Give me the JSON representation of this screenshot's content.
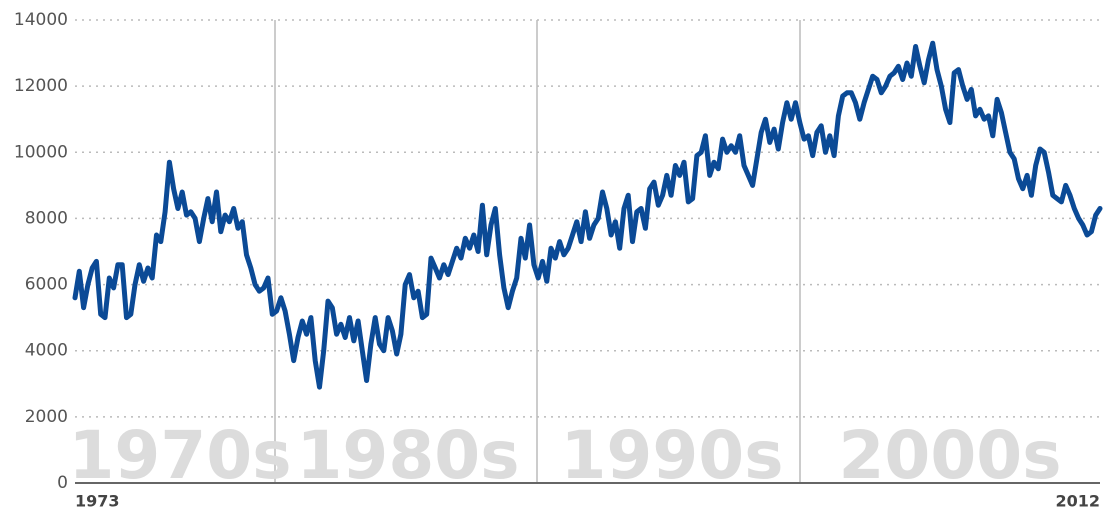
{
  "chart_data": {
    "type": "line",
    "annotations": [
      "1970s",
      "1980s",
      "1990s",
      "2000s"
    ],
    "categories": [
      "1973",
      null,
      null,
      null,
      null,
      null,
      null,
      null,
      null,
      null,
      null,
      null,
      null,
      null,
      null,
      null,
      null,
      null,
      null,
      null,
      null,
      null,
      null,
      null,
      null,
      null,
      null,
      null,
      null,
      null,
      null,
      null,
      null,
      null,
      null,
      null,
      null,
      null,
      null,
      null,
      null,
      null,
      null,
      null,
      null,
      null,
      null,
      null,
      null,
      null,
      null,
      null,
      null,
      null,
      null,
      null,
      null,
      null,
      null,
      null,
      null,
      null,
      null,
      null,
      null,
      null,
      null,
      null,
      null,
      null,
      null,
      null,
      null,
      null,
      null,
      null,
      null,
      null,
      null,
      null,
      null,
      null,
      null,
      null,
      null,
      null,
      null,
      null,
      null,
      null,
      null,
      null,
      null,
      null,
      null,
      null,
      null,
      null,
      null,
      null,
      null,
      null,
      null,
      null,
      null,
      null,
      null,
      null,
      null,
      null,
      null,
      null,
      null,
      null,
      null,
      null,
      null,
      null,
      null,
      null,
      null,
      null,
      null,
      null,
      null,
      null,
      null,
      null,
      null,
      null,
      null,
      null,
      null,
      null,
      null,
      null,
      null,
      null,
      null,
      null,
      null,
      null,
      null,
      null,
      null,
      null,
      null,
      null,
      null,
      null,
      null,
      null,
      null,
      null,
      null,
      null,
      null,
      null,
      null,
      null,
      null,
      null,
      null,
      null,
      null,
      null,
      null,
      null,
      null,
      null,
      null,
      null,
      null,
      null,
      null,
      null,
      null,
      null,
      null,
      null,
      null,
      null,
      null,
      null,
      null,
      null,
      null,
      null,
      null,
      null,
      null,
      null,
      null,
      null,
      null,
      null,
      null,
      null,
      null,
      null,
      null,
      null,
      null,
      null,
      null,
      null,
      null,
      null,
      null,
      null,
      null,
      null,
      null,
      null,
      null,
      null,
      null,
      null,
      null,
      null,
      null,
      null,
      null,
      null,
      null,
      null,
      null,
      null,
      null,
      null,
      null,
      null,
      null,
      null,
      null,
      null,
      null,
      null,
      null,
      "2012"
    ],
    "series": [
      {
        "color": "#0b4a96",
        "values": [
          5600,
          6400,
          5300,
          6000,
          6500,
          6700,
          5100,
          5000,
          6200,
          5900,
          6600,
          6600,
          5000,
          5100,
          6000,
          6600,
          6100,
          6500,
          6200,
          7500,
          7300,
          8200,
          9700,
          8900,
          8300,
          8800,
          8100,
          8200,
          8000,
          7300,
          8000,
          8600,
          7900,
          8800,
          7600,
          8100,
          7900,
          8300,
          7700,
          7900,
          6900,
          6500,
          6000,
          5800,
          5900,
          6200,
          5100,
          5200,
          5600,
          5200,
          4500,
          3700,
          4400,
          4900,
          4500,
          5000,
          3700,
          2900,
          4000,
          5500,
          5300,
          4500,
          4800,
          4400,
          5000,
          4300,
          4900,
          4000,
          3100,
          4200,
          5000,
          4200,
          4000,
          5000,
          4600,
          3900,
          4500,
          6000,
          6300,
          5600,
          5800,
          5000,
          5100,
          6800,
          6500,
          6200,
          6600,
          6300,
          6700,
          7100,
          6800,
          7400,
          7100,
          7500,
          7000,
          8400,
          6900,
          7800,
          8300,
          6900,
          5900,
          5300,
          5800,
          6200,
          7400,
          6800,
          7800,
          6600,
          6200,
          6700,
          6100,
          7100,
          6800,
          7300,
          6900,
          7100,
          7500,
          7900,
          7300,
          8200,
          7400,
          7800,
          8000,
          8800,
          8300,
          7500,
          7900,
          7100,
          8300,
          8700,
          7300,
          8200,
          8300,
          7700,
          8900,
          9100,
          8400,
          8700,
          9300,
          8700,
          9600,
          9300,
          9700,
          8500,
          8600,
          9900,
          10000,
          10500,
          9300,
          9700,
          9500,
          10400,
          10000,
          10200,
          10000,
          10500,
          9600,
          9300,
          9000,
          9800,
          10600,
          11000,
          10300,
          10700,
          10100,
          10900,
          11500,
          11000,
          11500,
          10900,
          10400,
          10500,
          9900,
          10600,
          10800,
          10000,
          10500,
          9900,
          11100,
          11700,
          11800,
          11800,
          11500,
          11000,
          11500,
          11900,
          12300,
          12200,
          11800,
          12000,
          12300,
          12400,
          12600,
          12200,
          12700,
          12300,
          13200,
          12600,
          12100,
          12800,
          13300,
          12500,
          12000,
          11300,
          10900,
          12400,
          12500,
          12000,
          11600,
          11900,
          11100,
          11300,
          11000,
          11100,
          10500,
          11600,
          11200,
          10600,
          10000,
          9800,
          9200,
          8900,
          9300,
          8700,
          9600,
          10100,
          10000,
          9400,
          8700,
          8600,
          8500,
          9000,
          8700,
          8300,
          8000,
          7800,
          7500,
          7600,
          8100,
          8300
        ]
      }
    ],
    "ylim": [
      0,
      14000
    ],
    "yticks": [
      0,
      2000,
      4000,
      6000,
      8000,
      10000,
      12000,
      14000
    ],
    "grid": true
  }
}
